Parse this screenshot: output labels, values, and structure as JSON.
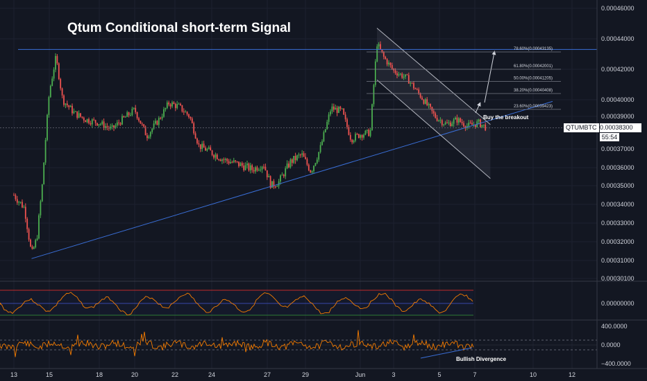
{
  "title": "Qtum Conditional short-term Signal",
  "symbol": "QTUMBTC",
  "last_price": "0.00038300",
  "countdown": "55:54",
  "annotations": {
    "breakout": "Buy the breakout",
    "divergence": "Bullish Divergence"
  },
  "fib_levels": [
    {
      "label": "78.60%(0.00043135)",
      "value": 0.00043135
    },
    {
      "label": "61.80%(0.00042001)",
      "value": 0.00042001
    },
    {
      "label": "50.00%(0.00041205)",
      "value": 0.00041205
    },
    {
      "label": "38.20%(0.00040408)",
      "value": 0.00040408
    },
    {
      "label": "23.60%(0.00039423)",
      "value": 0.00039423
    }
  ],
  "colors": {
    "background": "#131722",
    "up": "#4caf50",
    "down": "#ef5350",
    "trendline": "#3a6fd8",
    "osc_line": "#f57c00",
    "osc_upper": "#c62828",
    "osc_mid": "#3949ab",
    "osc_lower": "#2e7d32"
  },
  "chart_data": {
    "type": "candlestick",
    "x_ticks": [
      "13",
      "15",
      "18",
      "20",
      "22",
      "24",
      "27",
      "29",
      "Jun",
      "3",
      "5",
      "7",
      "10",
      "12"
    ],
    "y_ticks": [
      "0.00046000",
      "0.00044000",
      "0.00042000",
      "0.00040000",
      "0.00039000",
      "0.00037000",
      "0.00036000",
      "0.00035000",
      "0.00034000",
      "0.00033000",
      "0.00032000",
      "0.00031000",
      "0.00030100"
    ],
    "osc1_ticks": [
      "0.00000000"
    ],
    "osc2_ticks": [
      "400.0000",
      "0.0000",
      "−400.0000"
    ],
    "price_path": [
      [
        13,
        0.000345
      ],
      [
        13.6,
        0.000338
      ],
      [
        14.0,
        0.000313
      ],
      [
        14.3,
        0.000322
      ],
      [
        14.6,
        0.00035
      ],
      [
        15.0,
        0.000405
      ],
      [
        15.4,
        0.000428
      ],
      [
        15.8,
        0.0004
      ],
      [
        16.5,
        0.000392
      ],
      [
        17.2,
        0.000388
      ],
      [
        18.0,
        0.000386
      ],
      [
        18.7,
        0.000382
      ],
      [
        19.3,
        0.000388
      ],
      [
        20.0,
        0.000394
      ],
      [
        20.6,
        0.000378
      ],
      [
        21.2,
        0.000388
      ],
      [
        21.7,
        0.000398
      ],
      [
        22.2,
        0.000396
      ],
      [
        22.8,
        0.00039
      ],
      [
        23.3,
        0.000372
      ],
      [
        24.0,
        0.000368
      ],
      [
        24.7,
        0.000364
      ],
      [
        25.4,
        0.000362
      ],
      [
        26.2,
        0.000359
      ],
      [
        26.8,
        0.000362
      ],
      [
        27.2,
        0.00035
      ],
      [
        27.6,
        0.000352
      ],
      [
        28.2,
        0.000363
      ],
      [
        28.8,
        0.000367
      ],
      [
        29.3,
        0.000358
      ],
      [
        29.8,
        0.00037
      ],
      [
        30.4,
        0.000395
      ],
      [
        31.0,
        0.000393
      ],
      [
        31.5,
        0.000376
      ],
      [
        32.0,
        0.000379
      ],
      [
        32.6,
        0.00038
      ],
      [
        33.0,
        0.000437
      ],
      [
        33.4,
        0.000428
      ],
      [
        34.0,
        0.000419
      ],
      [
        34.6,
        0.000414
      ],
      [
        35.2,
        0.000402
      ],
      [
        35.8,
        0.00039
      ],
      [
        36.4,
        0.000385
      ],
      [
        37.0,
        0.000388
      ],
      [
        37.6,
        0.000384
      ],
      [
        38.2,
        0.000386
      ],
      [
        38.6,
        0.000383
      ]
    ],
    "trendlines": [
      {
        "name": "support",
        "from": [
          14.0,
          0.000311
        ],
        "to": [
          42.0,
          0.000399
        ]
      },
      {
        "name": "resistance",
        "from": [
          13.0,
          0.000433
        ],
        "to": [
          42.0,
          0.000433
        ]
      },
      {
        "name": "channel-upper",
        "from": [
          33.0,
          0.000447
        ],
        "to": [
          38.8,
          0.000385
        ]
      },
      {
        "name": "channel-lower",
        "from": [
          33.0,
          0.000413
        ],
        "to": [
          38.8,
          0.000354
        ]
      }
    ]
  }
}
